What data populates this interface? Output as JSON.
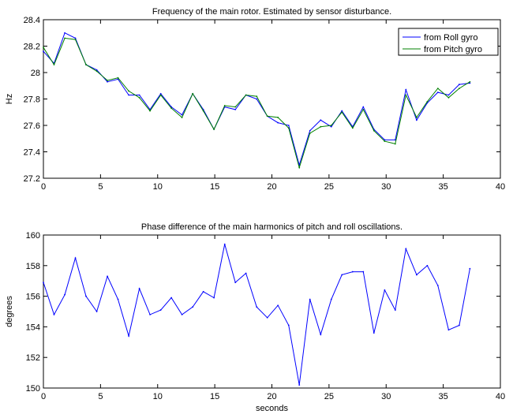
{
  "chart_data": [
    {
      "type": "line",
      "title": "Frequency of the main rotor. Estimated by sensor disturbance.",
      "xlabel": "",
      "ylabel": "Hz",
      "xlim": [
        0,
        40
      ],
      "ylim": [
        27.2,
        28.4
      ],
      "xticks": [
        "0",
        "5",
        "10",
        "15",
        "20",
        "25",
        "30",
        "35",
        "40"
      ],
      "yticks": [
        "27.2",
        "27.4",
        "27.6",
        "27.8",
        "28",
        "28.2",
        "28.4"
      ],
      "legend_position": "top-right",
      "grid": false,
      "series": [
        {
          "name": "from Roll gyro",
          "color": "#0000ff",
          "x": [
            0,
            0.93,
            1.87,
            2.8,
            3.73,
            4.67,
            5.6,
            6.53,
            7.47,
            8.4,
            9.33,
            10.27,
            11.2,
            12.13,
            13.07,
            14,
            14.93,
            15.87,
            16.8,
            17.73,
            18.67,
            19.6,
            20.53,
            21.47,
            22.4,
            23.33,
            24.27,
            25.2,
            26.13,
            27.07,
            28,
            28.93,
            29.87,
            30.8,
            31.73,
            32.67,
            33.6,
            34.53,
            35.47,
            36.4,
            37.33
          ],
          "y": [
            28.16,
            28.07,
            28.3,
            28.26,
            28.06,
            28.02,
            27.93,
            27.95,
            27.83,
            27.83,
            27.72,
            27.84,
            27.74,
            27.68,
            27.84,
            27.72,
            27.57,
            27.74,
            27.72,
            27.83,
            27.8,
            27.67,
            27.62,
            27.6,
            27.3,
            27.56,
            27.64,
            27.59,
            27.71,
            27.59,
            27.74,
            27.57,
            27.49,
            27.49,
            27.87,
            27.64,
            27.77,
            27.85,
            27.83,
            27.91,
            27.92
          ]
        },
        {
          "name": "from Pitch gyro",
          "color": "#008000",
          "x": [
            0,
            0.93,
            1.87,
            2.8,
            3.73,
            4.67,
            5.6,
            6.53,
            7.47,
            8.4,
            9.33,
            10.27,
            11.2,
            12.13,
            13.07,
            14,
            14.93,
            15.87,
            16.8,
            17.73,
            18.67,
            19.6,
            20.53,
            21.47,
            22.4,
            23.33,
            24.27,
            25.2,
            26.13,
            27.07,
            28,
            28.93,
            29.87,
            30.8,
            31.73,
            32.67,
            33.6,
            34.53,
            35.47,
            36.4,
            37.33
          ],
          "y": [
            28.19,
            28.06,
            28.26,
            28.25,
            28.06,
            28.01,
            27.94,
            27.96,
            27.86,
            27.81,
            27.71,
            27.83,
            27.73,
            27.66,
            27.84,
            27.71,
            27.57,
            27.75,
            27.74,
            27.83,
            27.82,
            27.67,
            27.66,
            27.58,
            27.28,
            27.54,
            27.59,
            27.6,
            27.7,
            27.58,
            27.72,
            27.56,
            27.48,
            27.46,
            27.83,
            27.66,
            27.78,
            27.88,
            27.81,
            27.88,
            27.93
          ]
        }
      ]
    },
    {
      "type": "line",
      "title": "Phase difference of the main harmonics of pitch and roll oscillations.",
      "xlabel": "seconds",
      "ylabel": "degrees",
      "xlim": [
        0,
        40
      ],
      "ylim": [
        150,
        160
      ],
      "xticks": [
        "0",
        "5",
        "10",
        "15",
        "20",
        "25",
        "30",
        "35",
        "40"
      ],
      "yticks": [
        "150",
        "152",
        "154",
        "156",
        "158",
        "160"
      ],
      "grid": false,
      "series": [
        {
          "color": "#0000ff",
          "x": [
            0,
            0.93,
            1.87,
            2.8,
            3.73,
            4.67,
            5.6,
            6.53,
            7.47,
            8.4,
            9.33,
            10.27,
            11.2,
            12.13,
            13.07,
            14,
            14.93,
            15.87,
            16.8,
            17.73,
            18.67,
            19.6,
            20.53,
            21.47,
            22.4,
            23.33,
            24.27,
            25.2,
            26.13,
            27.07,
            28,
            28.93,
            29.87,
            30.8,
            31.73,
            32.67,
            33.6,
            34.53,
            35.47,
            36.4,
            37.33
          ],
          "y": [
            156.9,
            154.8,
            156.1,
            158.5,
            156.0,
            155.0,
            157.3,
            155.8,
            153.4,
            156.5,
            154.8,
            155.1,
            155.9,
            154.8,
            155.3,
            156.3,
            155.9,
            159.4,
            156.9,
            157.5,
            155.3,
            154.6,
            155.4,
            154.1,
            150.2,
            155.8,
            153.5,
            155.8,
            157.4,
            157.6,
            157.6,
            153.6,
            156.4,
            155.1,
            159.1,
            157.4,
            158.0,
            156.7,
            153.8,
            154.1,
            157.8
          ]
        }
      ]
    }
  ]
}
